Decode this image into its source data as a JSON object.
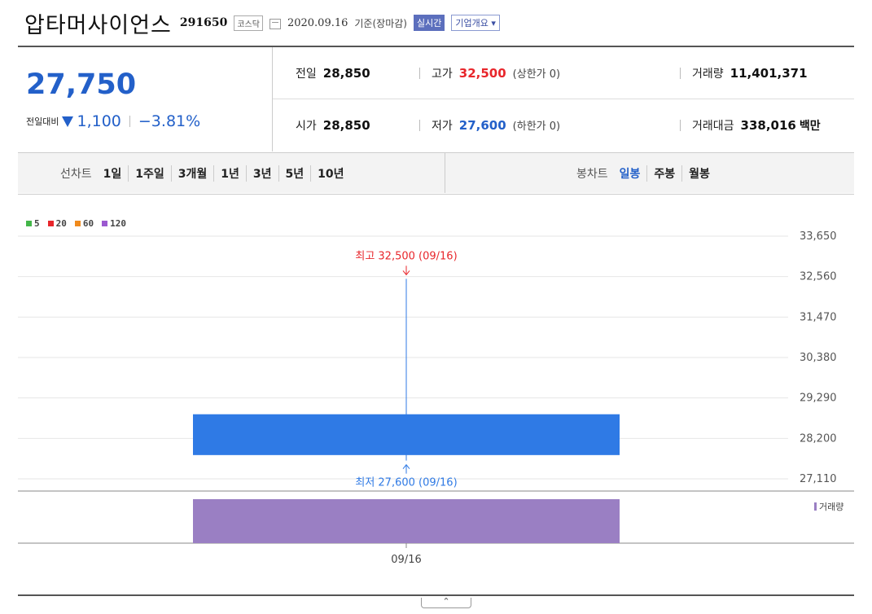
{
  "header": {
    "name": "압타머사이언스",
    "code": "291650",
    "market": "코스닥",
    "date": "2020.09.16",
    "basis": "기준(장마감)",
    "realtime_label": "실시간",
    "company_info_label": "기업개요 ▾"
  },
  "summary": {
    "current_price": "27,750",
    "change_label": "전일대비",
    "change_value": "1,100",
    "change_pct": "−3.81%",
    "prev_close": {
      "label": "전일",
      "value": "28,850"
    },
    "open": {
      "label": "시가",
      "value": "28,850"
    },
    "high": {
      "label": "고가",
      "value": "32,500",
      "note": "(상한가 0)"
    },
    "low": {
      "label": "저가",
      "value": "27,600",
      "note": "(하한가 0)"
    },
    "volume": {
      "label": "거래량",
      "value": "11,401,371"
    },
    "trade_amount": {
      "label": "거래대금",
      "value": "338,016",
      "unit": "백만"
    }
  },
  "periods": {
    "line_label": "선차트",
    "line_options": [
      "1일",
      "1주일",
      "3개월",
      "1년",
      "3년",
      "5년",
      "10년"
    ],
    "candle_label": "봉차트",
    "candle_options": [
      "일봉",
      "주봉",
      "월봉"
    ],
    "active_candle": "일봉"
  },
  "colors": {
    "up": "#e8262b",
    "down": "#2f7ae5",
    "accent": "#2360c9",
    "volume": "#9a7fc3"
  },
  "chart_data": {
    "type": "candlestick",
    "moving_average_legend": [
      {
        "name": "5",
        "color": "#43b649"
      },
      {
        "name": "20",
        "color": "#e8262b"
      },
      {
        "name": "60",
        "color": "#f08a1c"
      },
      {
        "name": "120",
        "color": "#9b59d0"
      }
    ],
    "y_ticks": [
      "33,650",
      "32,560",
      "31,470",
      "30,380",
      "29,290",
      "28,200",
      "27,110"
    ],
    "ylim": [
      27110,
      33650
    ],
    "x": [
      "09/16"
    ],
    "candles": [
      {
        "date": "09/16",
        "open": 28850,
        "high": 32500,
        "low": 27600,
        "close": 27750
      }
    ],
    "annotations": {
      "high_label": "최고 32,500 (09/16)",
      "low_label": "최저 27,600 (09/16)"
    },
    "volume": {
      "label": "거래량",
      "values": [
        11401371
      ]
    }
  },
  "ui": {
    "collapse_label": "⌃"
  }
}
